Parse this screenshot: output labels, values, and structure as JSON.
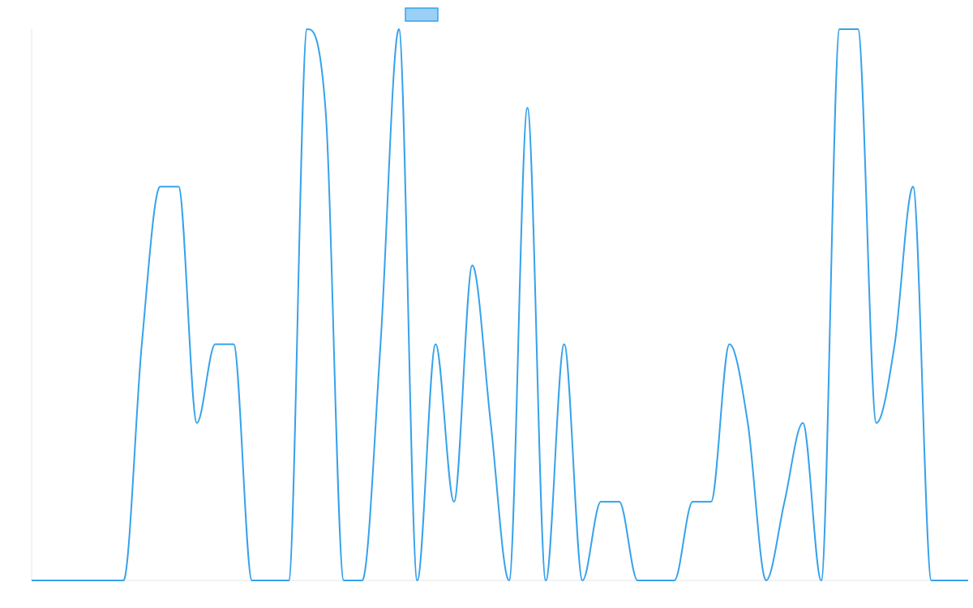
{
  "chart_data": {
    "type": "line",
    "title": "",
    "xlabel": "",
    "ylabel": "",
    "grid": false,
    "legend": {
      "position": "top-center",
      "entries": [
        {
          "name": "",
          "color": "#36a2eb"
        }
      ]
    },
    "ylim": [
      0,
      7
    ],
    "x": [
      0,
      1,
      2,
      3,
      4,
      5,
      6,
      7,
      8,
      9,
      10,
      11,
      12,
      13,
      14,
      15,
      16,
      17,
      18,
      19,
      20,
      21,
      22,
      23,
      24,
      25,
      26,
      27,
      28,
      29,
      30,
      31,
      32,
      33,
      34,
      35,
      36,
      37,
      38,
      39,
      40,
      41,
      42,
      43,
      44,
      45,
      46,
      47,
      48,
      49,
      50,
      51
    ],
    "series": [
      {
        "name": "",
        "color": "#36a2eb",
        "fill": "rgba(54,162,235,0.5)",
        "values": [
          0,
          0,
          0,
          0,
          0,
          0,
          3,
          5,
          5,
          2,
          3,
          3,
          0,
          0,
          0,
          7,
          6,
          0,
          0,
          3,
          7,
          0,
          3,
          1,
          4,
          2,
          0,
          6,
          0,
          3,
          0,
          1,
          1,
          0,
          0,
          0,
          1,
          1,
          3,
          2,
          0,
          1,
          2,
          0,
          7,
          7,
          2,
          3,
          5,
          0,
          0,
          0
        ]
      }
    ]
  }
}
